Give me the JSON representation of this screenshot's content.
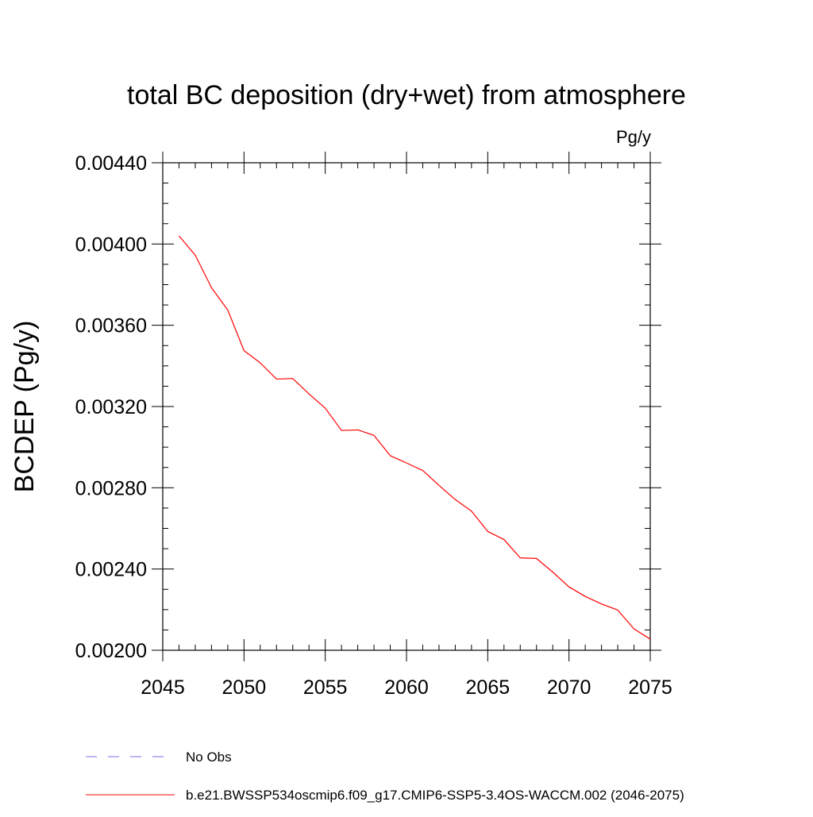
{
  "chart_data": {
    "type": "line",
    "title": "total BC deposition (dry+wet) from atmosphere",
    "units_label": "Pg/y",
    "xlabel": "",
    "ylabel": "BCDEP  (Pg/y)",
    "xlim": [
      2045,
      2075
    ],
    "ylim": [
      0.002,
      0.0044
    ],
    "x_ticks": [
      2045,
      2050,
      2055,
      2060,
      2065,
      2070,
      2075
    ],
    "x_tick_labels": [
      "2045",
      "2050",
      "2055",
      "2060",
      "2065",
      "2070",
      "2075"
    ],
    "y_ticks": [
      0.002,
      0.0024,
      0.0028,
      0.0032,
      0.0036,
      0.004,
      0.0044
    ],
    "y_tick_labels": [
      "0.00200",
      "0.00240",
      "0.00280",
      "0.00320",
      "0.00360",
      "0.00400",
      "0.00440"
    ],
    "grid": false,
    "legend_position": "bottom",
    "series": [
      {
        "name": "b.e21.BWSSP534oscmip6.f09_g17.CMIP6-SSP5-3.4OS-WACCM.002 (2046-2075)",
        "color": "#ff0000",
        "style": "solid",
        "x": [
          2046,
          2047,
          2048,
          2049,
          2050,
          2051,
          2052,
          2053,
          2054,
          2055,
          2056,
          2057,
          2058,
          2059,
          2060,
          2061,
          2062,
          2063,
          2064,
          2065,
          2066,
          2067,
          2068,
          2069,
          2070,
          2071,
          2072,
          2073,
          2074,
          2075
        ],
        "values": [
          0.00404,
          0.003945,
          0.003785,
          0.003675,
          0.003475,
          0.003415,
          0.003335,
          0.003338,
          0.003262,
          0.003192,
          0.003082,
          0.003085,
          0.003058,
          0.002958,
          0.002922,
          0.002885,
          0.002812,
          0.002742,
          0.002685,
          0.002585,
          0.002545,
          0.002455,
          0.002452,
          0.002385,
          0.002312,
          0.002265,
          0.002228,
          0.002198,
          0.002105,
          0.002055
        ]
      }
    ],
    "legend": [
      {
        "label": "No Obs",
        "color": "#7b68ee",
        "style": "dashed"
      },
      {
        "label": "b.e21.BWSSP534oscmip6.f09_g17.CMIP6-SSP5-3.4OS-WACCM.002 (2046-2075)",
        "color": "#ff0000",
        "style": "solid"
      }
    ]
  }
}
